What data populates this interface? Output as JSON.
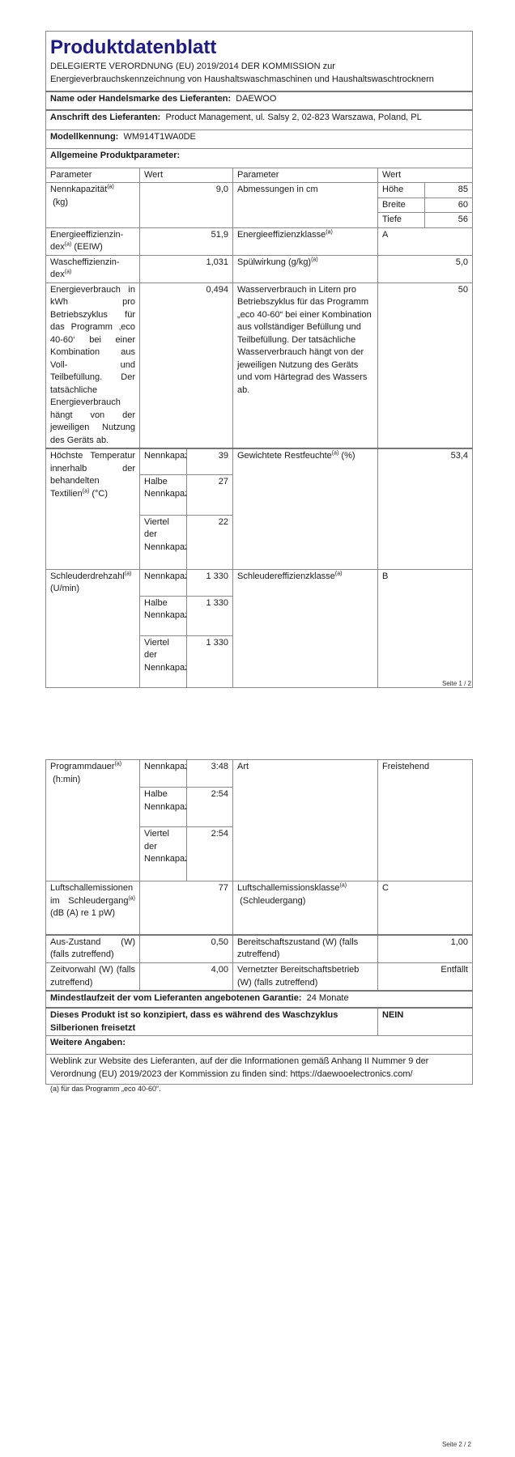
{
  "header": {
    "title": "Produktdatenblatt",
    "subtitle": "DELEGIERTE VERORDNUNG (EU) 2019/2014 DER KOMMISSION zur Energieverbrauchskennzeichnung von Haushaltswaschmaschinen und Haushaltswaschtrocknern"
  },
  "supplier": {
    "name_label": "Name oder Handelsmarke des Lieferanten:",
    "name_value": "DAEWOO",
    "address_label": "Anschrift des Lieferanten:",
    "address_value": "Product Management, ul. Salsy 2, 02-823 Warszawa, Poland, PL",
    "model_label": "Modellkennung:",
    "model_value": "WM914T1WA0DE",
    "general_label": "Allgemeine Produktparameter:"
  },
  "columns": {
    "parameter": "Parameter",
    "wert": "Wert"
  },
  "footnote_mark": "(a)",
  "rows": {
    "capacity": {
      "label": "Nennkapazität",
      "unit": "(kg)",
      "value": "9,0"
    },
    "dimensions": {
      "label": "Abmessungen in cm",
      "hoehe_label": "Höhe",
      "hoehe": "85",
      "breite_label": "Breite",
      "breite": "60",
      "tiefe_label": "Tiefe",
      "tiefe": "56"
    },
    "eei": {
      "label": "Energieeffizienzin-dex",
      "unit": "(EEIW)",
      "value": "51,9"
    },
    "eei_class": {
      "label": "Energieeffizienzklasse",
      "value": "A"
    },
    "wash_index": {
      "label": "Wascheffizienzin-dex",
      "value": "1,031"
    },
    "rinse": {
      "label": "Spülwirkung (g/kg)",
      "value": "5,0"
    },
    "energy": {
      "label": "Energieverbrauch in kWh pro Betriebszyklus für das Programm ‚eco 40-60‘ bei einer Kombination aus Voll- und Teilbefüllung. Der tatsächliche Energieverbrauch hängt von der jeweiligen Nutzung des Geräts ab.",
      "value": "0,494"
    },
    "water": {
      "label": "Wasserverbrauch in Litern pro Betriebszyklus für das Programm „eco 40-60“ bei einer Kombination aus vollständiger Befüllung und Teilbefüllung. Der tatsächliche Wasserverbrauch hängt von der jeweiligen Nutzung des Geräts und vom Härtegrad des Wassers ab.",
      "value": "50"
    },
    "temperature": {
      "label": "Höchste Temperatur innerhalb der behandelten Textilien",
      "unit": "(°C)",
      "full_label": "Nennkapazität",
      "full": "39",
      "half_label": "Halbe Nennkapazität",
      "half": "27",
      "quarter_label": "Viertel der Nennkapazität",
      "quarter": "22"
    },
    "moisture": {
      "label": "Gewichtete Restfeuchte",
      "unit": "(%)",
      "value": "53,4"
    },
    "spin_speed": {
      "label": "Schleuderdrehzahl",
      "unit": "(U/min)",
      "full_label": "Nennkapazität",
      "full": "1 330",
      "half_label": "Halbe Nennkapazität",
      "half": "1 330",
      "quarter_label": "Viertel der Nennkapazität",
      "quarter": "1 330"
    },
    "spin_class": {
      "label": "Schleudereffizienzklasse",
      "value": "B"
    },
    "duration": {
      "label": "Programmdauer",
      "unit": "(h:min)",
      "full_label": "Nennkapazität",
      "full": "3:48",
      "half_label": "Halbe Nennkapazität",
      "half": "2:54",
      "quarter_label": "Viertel der Nennkapazität",
      "quarter": "2:54"
    },
    "type": {
      "label": "Art",
      "value": "Freistehend"
    },
    "noise": {
      "label": "Luftschallemissionen im Schleudergang",
      "unit": "(dB (A) re 1 pW)",
      "value": "77"
    },
    "noise_class": {
      "label": "Luftschallemissionsklasse",
      "unit": "(Schleudergang)",
      "value": "C"
    },
    "off": {
      "label": "Aus-Zustand (W) (falls zutreffend)",
      "value": "0,50"
    },
    "standby": {
      "label": "Bereitschaftszustand (W) (falls zutreffend)",
      "value": "1,00"
    },
    "delay": {
      "label": "Zeitvorwahl (W) (falls zutreffend)",
      "value": "4,00"
    },
    "networked": {
      "label": "Vernetzter Bereitschaftsbetrieb (W) (falls zutreffend)",
      "value": "Entfällt"
    }
  },
  "warranty": {
    "label": "Mindestlaufzeit der vom Lieferanten angebotenen Garantie:",
    "value": "24 Monate"
  },
  "silver": {
    "label": "Dieses Produkt ist so konzipiert, dass es während des Waschzyklus Silberionen freisetzt",
    "value": "NEIN"
  },
  "more": {
    "label": "Weitere Angaben:",
    "weblink": "Weblink zur Website des Lieferanten, auf der die Informationen gemäß Anhang II Nummer 9 der Verordnung (EU) 2019/2023 der Kommission zu finden sind:  https://daewooelectronics.com/"
  },
  "footnote": "(a) für das Programm „eco 40-60“.",
  "pages": {
    "p1": "Seite 1 / 2",
    "p2": "Seite 2 / 2"
  }
}
